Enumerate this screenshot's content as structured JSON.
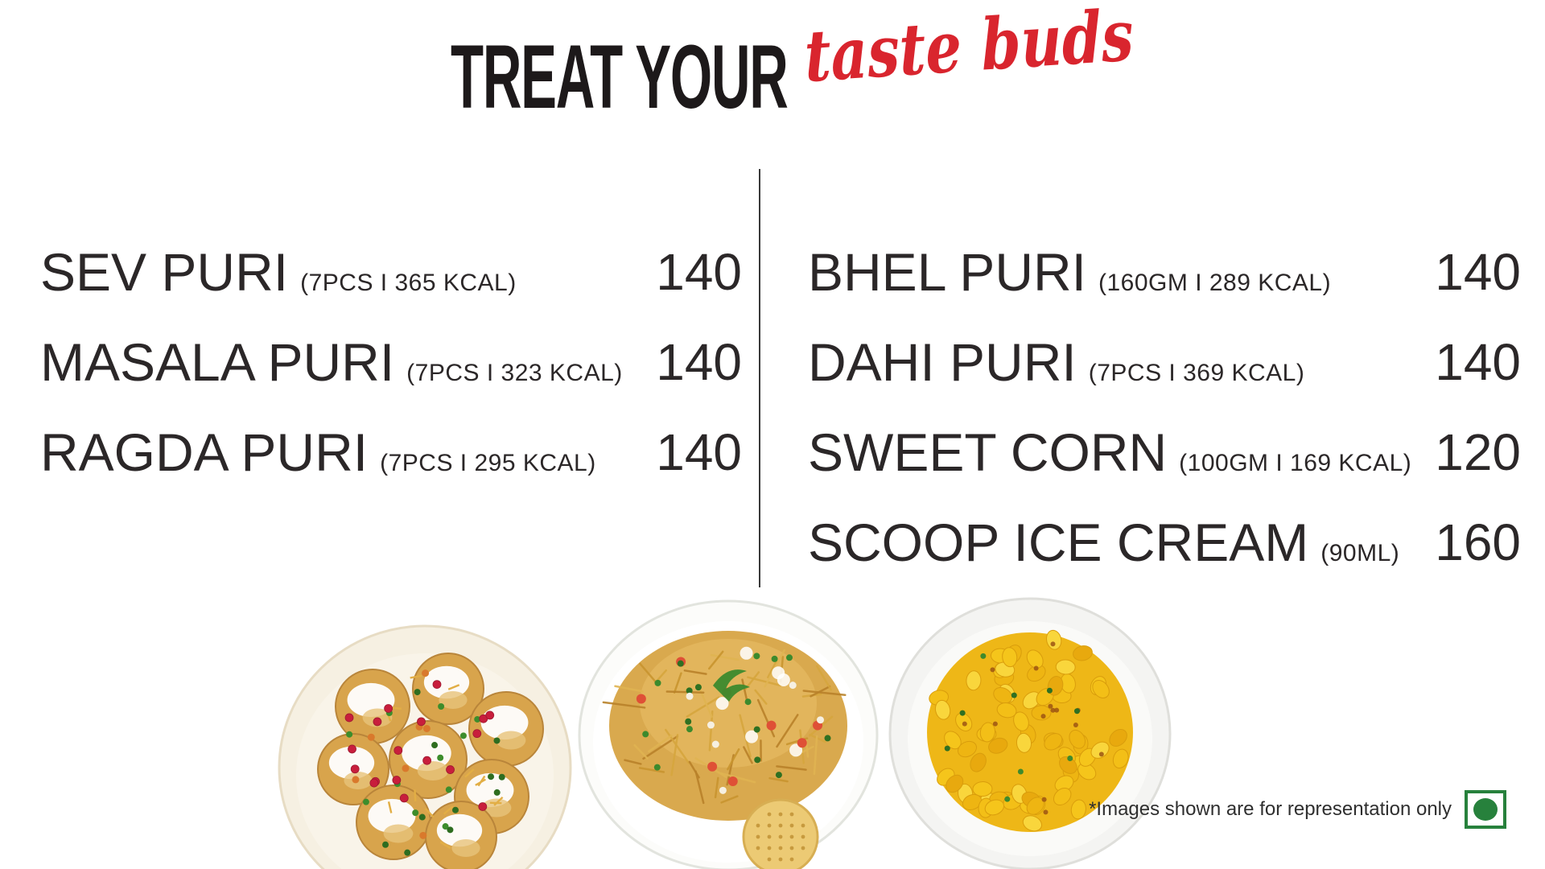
{
  "header": {
    "title_black": "TREAT YOUR",
    "title_script": "taste buds"
  },
  "colors": {
    "accent_red": "#D9252E",
    "text_dark": "#2B2728",
    "veg_green": "#27813C"
  },
  "menu": {
    "left": {
      "items": [
        {
          "name": "SEV PURI",
          "detail": "(7PCS I 365 KCAL)",
          "price": "140"
        },
        {
          "name": "MASALA PURI",
          "detail": "(7PCS I 323 KCAL)",
          "price": "140"
        },
        {
          "name": "RAGDA PURI",
          "detail": "(7PCS I 295 KCAL)",
          "price": "140"
        }
      ]
    },
    "right": {
      "items": [
        {
          "name": "BHEL PURI",
          "detail": "(160GM I 289 KCAL)",
          "price": "140"
        },
        {
          "name": "DAHI PURI",
          "detail": "(7PCS I 369 KCAL)",
          "price": "140"
        },
        {
          "name": "SWEET CORN",
          "detail": "(100GM I 169 KCAL)",
          "price": "120"
        },
        {
          "name": "SCOOP ICE CREAM",
          "detail": "(90ML)",
          "price": "160"
        }
      ]
    }
  },
  "images": [
    {
      "name": "sev-puri-plate"
    },
    {
      "name": "bhel-puri-plate"
    },
    {
      "name": "sweet-corn-plate"
    }
  ],
  "footer": {
    "note": "*Images shown are for representation only"
  }
}
